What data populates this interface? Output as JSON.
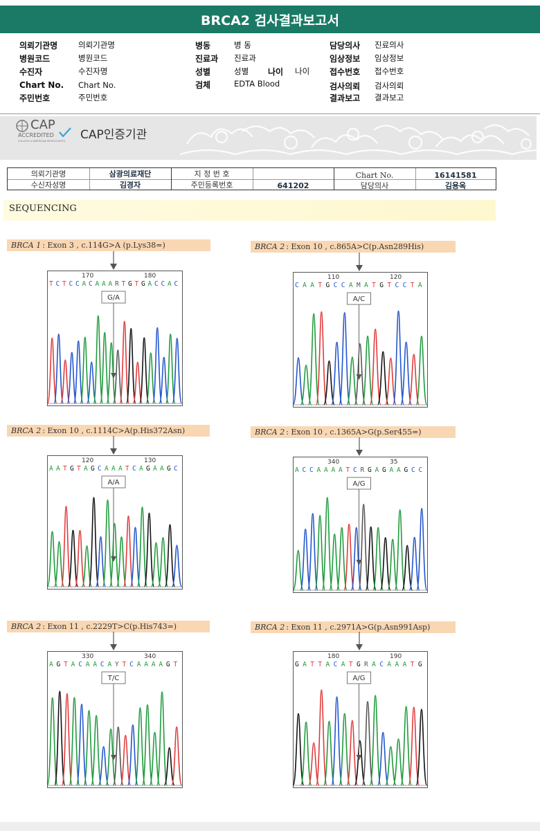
{
  "report_title": "BRCA2 검사결과보고서",
  "info": {
    "col1": [
      {
        "label": "의뢰기관명",
        "value": "의뢰기관명"
      },
      {
        "label": "병원코드",
        "value": "병원코드"
      },
      {
        "label": "수진자",
        "value": "수진자명"
      },
      {
        "label": "Chart No.",
        "value": "Chart No."
      },
      {
        "label": "주민번호",
        "value": "주민번호"
      }
    ],
    "col2": [
      {
        "label": "병동",
        "value": "병 동"
      },
      {
        "label": "진료과",
        "value": "진료과"
      },
      {
        "label": "성별",
        "value": "성별"
      },
      {
        "label": "검체",
        "value": "EDTA Blood"
      }
    ],
    "age": {
      "label": "나이",
      "value": "나이"
    },
    "col3": [
      {
        "label": "담당의사",
        "value": "진료의사"
      },
      {
        "label": "임상정보",
        "value": "임상정보"
      },
      {
        "label": "접수번호",
        "value": "접수번호"
      },
      {
        "label": "검사의뢰",
        "value": "검사의뢰"
      },
      {
        "label": "결과보고",
        "value": "결과보고"
      }
    ]
  },
  "cap": {
    "logo": "CAP",
    "accredited": "ACCREDITED",
    "college": "COLLEGE of AMERICAN PATHOLOGISTS",
    "title": "CAP인증기관"
  },
  "patient": {
    "inst_label": "의뢰기관명",
    "inst_value": "삼광의료재단",
    "name_label": "수신자성명",
    "name_value": "김경자",
    "code_label": "지 정 번 호",
    "code_value": "",
    "rrn_label": "주민등록번호",
    "rrn_value": "641202",
    "chart_label": "Chart No.",
    "chart_value": "16141581",
    "doctor_label": "담당의사",
    "doctor_value": "김용옥"
  },
  "section_title": "SEQUENCING",
  "panels": [
    {
      "gene": "BRCA 1",
      "rest": ": Exon 3 , c.114G>A (p.Lys38=)",
      "pos_left": "170",
      "pos_right": "180",
      "seq": "TCTCCACAAARTGTGACCAC",
      "call": "G/A",
      "colors": {
        "primary": "#e03a3a"
      }
    },
    {
      "gene": "BRCA 2",
      "rest": ": Exon 10 , c.865A>C(p.Asn289His)",
      "pos_left": "110",
      "pos_right": "120",
      "seq": "CAATGCCAMATGTCCTA",
      "call": "A/C",
      "colors": {
        "primary": "#e03a3a"
      }
    },
    {
      "gene": "BRCA 2",
      "rest": ": Exon 10 , c.1114C>A(p.His372Asn)",
      "pos_left": "120",
      "pos_right": "130",
      "seq": "AATGTAGCAAATCAGAAGC",
      "call": "A/A",
      "colors": {
        "primary": "#e03a3a"
      }
    },
    {
      "gene": "BRCA 2",
      "rest": ": Exon 10 , c.1365A>G(p.Ser455=)",
      "pos_left": "340",
      "pos_right": "35",
      "seq": "ACCAAAATCRGAGAAGCC",
      "call": "A/G",
      "colors": {
        "primary": "#e03a3a"
      }
    },
    {
      "gene": "BRCA 2",
      "rest": ": Exon 11 , c.2229T>C(p.His743=)",
      "pos_left": "330",
      "pos_right": "340",
      "seq": "AGTACAACAYTCAAAAGT",
      "call": "T/C",
      "colors": {
        "primary": "#e03a3a"
      }
    },
    {
      "gene": "BRCA 2",
      "rest": ": Exon 11 , c.2971A>G(p.Asn991Asp)",
      "pos_left": "180",
      "pos_right": "190",
      "seq": "GATTACATGRACAAATG",
      "call": "A/G",
      "colors": {
        "primary": "#e03a3a"
      }
    }
  ]
}
